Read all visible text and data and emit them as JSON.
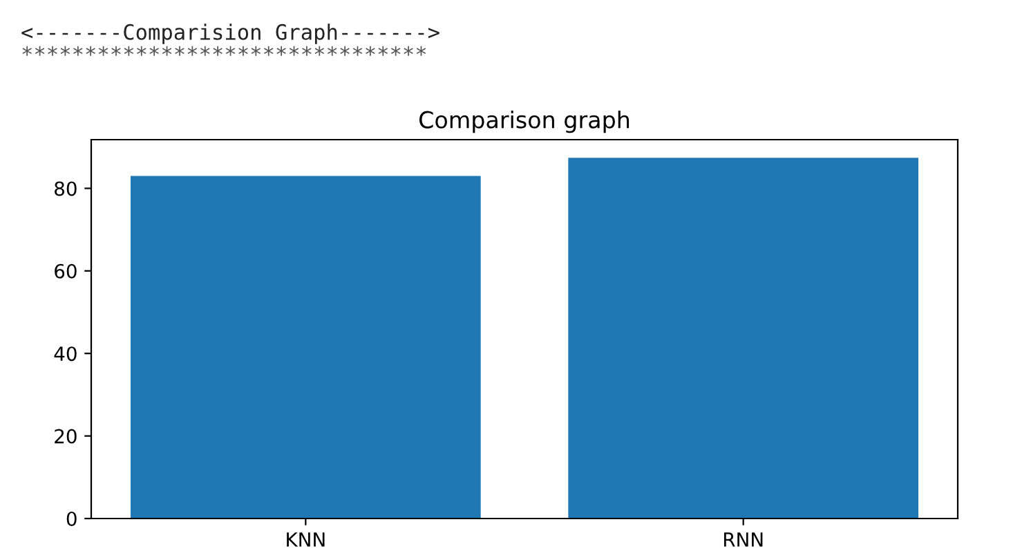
{
  "chart_data": {
    "type": "bar",
    "title": "Comparison graph",
    "categories": [
      "KNN",
      "RNN"
    ],
    "values": [
      83.0,
      87.4
    ],
    "color": "#1f77b4",
    "ylim": [
      0,
      91.8
    ],
    "yticks": [
      0,
      20,
      40,
      60,
      80
    ],
    "grid": false,
    "annotations": [
      "<-------Comparision Graph------->",
      "********************************"
    ]
  }
}
